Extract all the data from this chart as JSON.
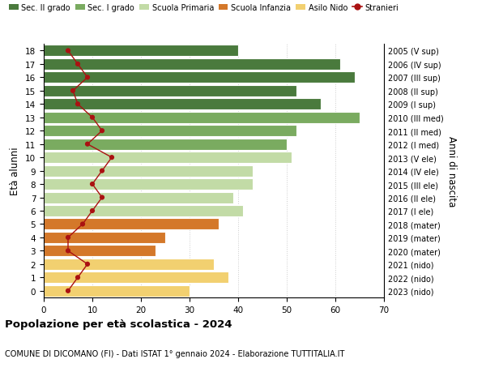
{
  "ages": [
    18,
    17,
    16,
    15,
    14,
    13,
    12,
    11,
    10,
    9,
    8,
    7,
    6,
    5,
    4,
    3,
    2,
    1,
    0
  ],
  "years_labels": [
    "2005 (V sup)",
    "2006 (IV sup)",
    "2007 (III sup)",
    "2008 (II sup)",
    "2009 (I sup)",
    "2010 (III med)",
    "2011 (II med)",
    "2012 (I med)",
    "2013 (V ele)",
    "2014 (IV ele)",
    "2015 (III ele)",
    "2016 (II ele)",
    "2017 (I ele)",
    "2018 (mater)",
    "2019 (mater)",
    "2020 (mater)",
    "2021 (nido)",
    "2022 (nido)",
    "2023 (nido)"
  ],
  "bar_values": [
    40,
    61,
    64,
    52,
    57,
    65,
    52,
    50,
    51,
    43,
    43,
    39,
    41,
    36,
    25,
    23,
    35,
    38,
    30
  ],
  "bar_colors": [
    "#4a7a3d",
    "#4a7a3d",
    "#4a7a3d",
    "#4a7a3d",
    "#4a7a3d",
    "#7aab60",
    "#7aab60",
    "#7aab60",
    "#c2dba6",
    "#c2dba6",
    "#c2dba6",
    "#c2dba6",
    "#c2dba6",
    "#d4782a",
    "#d4782a",
    "#d4782a",
    "#f2d070",
    "#f2d070",
    "#f2d070"
  ],
  "stranieri_values": [
    5,
    7,
    9,
    6,
    7,
    10,
    12,
    9,
    14,
    12,
    10,
    12,
    10,
    8,
    5,
    5,
    9,
    7,
    5
  ],
  "legend_labels": [
    "Sec. II grado",
    "Sec. I grado",
    "Scuola Primaria",
    "Scuola Infanzia",
    "Asilo Nido",
    "Stranieri"
  ],
  "legend_colors": [
    "#4a7a3d",
    "#7aab60",
    "#c2dba6",
    "#d4782a",
    "#f2d070",
    "#aa1111"
  ],
  "title_bold": "Popolazione per età scolastica - 2024",
  "subtitle": "COMUNE DI DICOMANO (FI) - Dati ISTAT 1° gennaio 2024 - Elaborazione TUTTITALIA.IT",
  "ylabel_left": "Età alunni",
  "ylabel_right": "Anni di nascita",
  "xlim": [
    0,
    70
  ],
  "background_color": "#ffffff",
  "grid_color": "#cccccc"
}
